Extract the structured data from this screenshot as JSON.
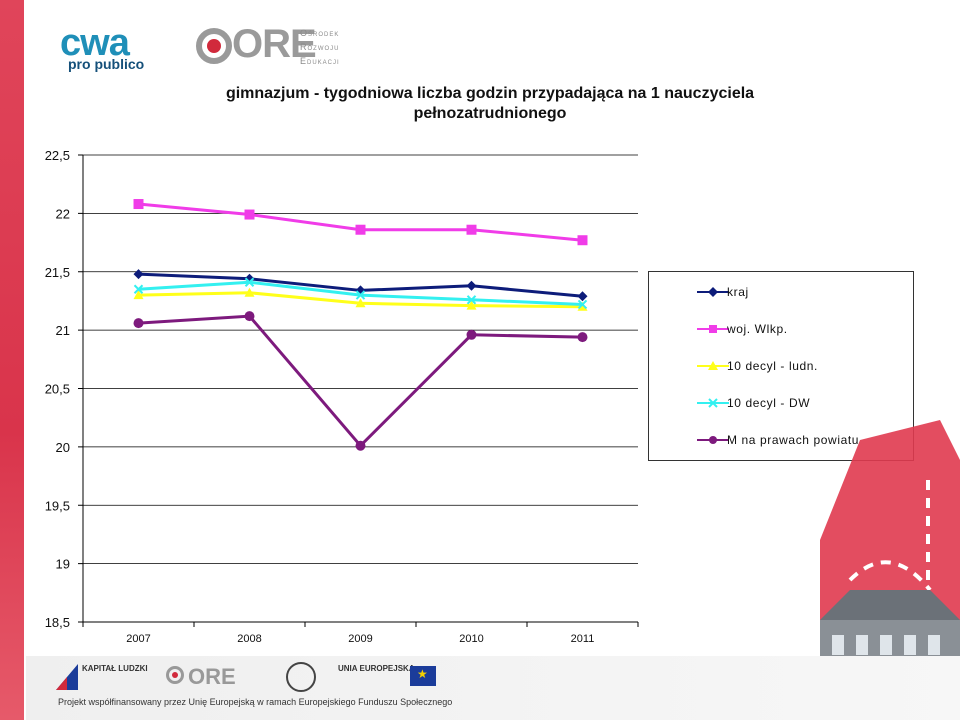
{
  "header": {
    "cwa_logo": "cwa",
    "cwa_sub": "pro publico",
    "ore_logo": "ORE",
    "ore_lines": [
      "Ośrodek",
      "Rozwoju",
      "Edukacji"
    ]
  },
  "chart_data": {
    "type": "line",
    "title_line1": "gimnazjum - tygodniowa liczba godzin przypadająca na 1 nauczyciela",
    "title_line2": "pełnozatrudnionego",
    "categories": [
      "2007",
      "2008",
      "2009",
      "2010",
      "2011"
    ],
    "ylim": [
      18.5,
      22.5
    ],
    "yticks": [
      "22,5",
      "22",
      "21,5",
      "21",
      "20,5",
      "20",
      "19,5",
      "19",
      "18,5"
    ],
    "ytick_values": [
      22.5,
      22,
      21.5,
      21,
      20.5,
      20,
      19.5,
      19,
      18.5
    ],
    "grid": true,
    "legend_position": "right",
    "series": [
      {
        "name": "kraj",
        "values": [
          21.48,
          21.44,
          21.34,
          21.38,
          21.29
        ],
        "color": "#0d1c7a",
        "marker": "diamond"
      },
      {
        "name": "woj. Wlkp.",
        "values": [
          22.08,
          21.99,
          21.86,
          21.86,
          21.77
        ],
        "color": "#f03ce8",
        "marker": "square"
      },
      {
        "name": "10 decyl - ludn.",
        "values": [
          21.3,
          21.32,
          21.23,
          21.21,
          21.2
        ],
        "color": "#ffff1a",
        "marker": "triangle"
      },
      {
        "name": "10 decyl - DW",
        "values": [
          21.35,
          21.41,
          21.3,
          21.26,
          21.22
        ],
        "color": "#33f0f0",
        "marker": "x"
      },
      {
        "name": "M na prawach powiatu",
        "values": [
          21.06,
          21.12,
          20.01,
          20.96,
          20.94
        ],
        "color": "#7d1a7d",
        "marker": "circle"
      }
    ]
  },
  "footer": {
    "kapital": "KAPITAŁ LUDZKI",
    "ore_mini": "ORE",
    "ue_text": "UNIA EUROPEJSKA",
    "line": "Projekt współfinansowany przez Unię Europejską w ramach Europejskiego Funduszu Społecznego"
  }
}
